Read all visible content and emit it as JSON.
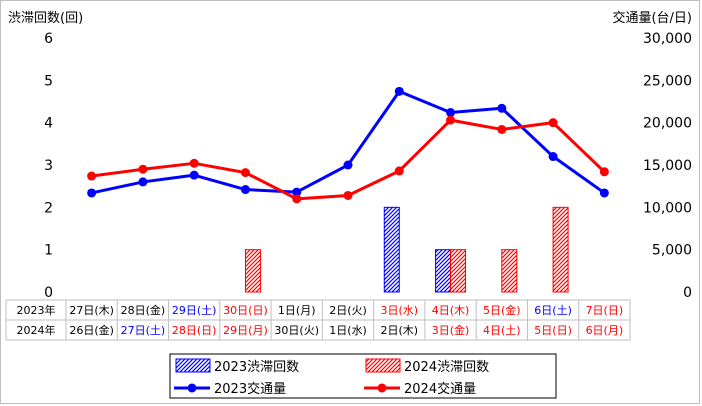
{
  "chart_data": {
    "type": "bar+line",
    "left_axis_title": "渋滞回数(回)",
    "right_axis_title": "交通量(台/日)",
    "left_ylim": [
      0,
      6
    ],
    "right_ylim": [
      0,
      30000
    ],
    "left_ticks": [
      "0",
      "1",
      "2",
      "3",
      "4",
      "5",
      "6"
    ],
    "right_ticks": [
      "0",
      "5,000",
      "10,000",
      "15,000",
      "20,000",
      "25,000",
      "30,000"
    ],
    "grid": false,
    "legend_position": "bottom",
    "rows": [
      {
        "year": "2023年",
        "dates": [
          {
            "text": "27日(木)",
            "color": "#000000"
          },
          {
            "text": "28日(金)",
            "color": "#000000"
          },
          {
            "text": "29日(土)",
            "color": "#0000ff"
          },
          {
            "text": "30日(日)",
            "color": "#ff0000"
          },
          {
            "text": "1日(月)",
            "color": "#000000"
          },
          {
            "text": "2日(火)",
            "color": "#000000"
          },
          {
            "text": "3日(水)",
            "color": "#ff0000"
          },
          {
            "text": "4日(木)",
            "color": "#ff0000"
          },
          {
            "text": "5日(金)",
            "color": "#ff0000"
          },
          {
            "text": "6日(土)",
            "color": "#0000ff"
          },
          {
            "text": "7日(日)",
            "color": "#ff0000"
          }
        ]
      },
      {
        "year": "2024年",
        "dates": [
          {
            "text": "26日(金)",
            "color": "#000000"
          },
          {
            "text": "27日(土)",
            "color": "#0000ff"
          },
          {
            "text": "28日(日)",
            "color": "#ff0000"
          },
          {
            "text": "29日(月)",
            "color": "#ff0000"
          },
          {
            "text": "30日(火)",
            "color": "#000000"
          },
          {
            "text": "1日(水)",
            "color": "#000000"
          },
          {
            "text": "2日(木)",
            "color": "#000000"
          },
          {
            "text": "3日(金)",
            "color": "#ff0000"
          },
          {
            "text": "4日(土)",
            "color": "#ff0000"
          },
          {
            "text": "5日(日)",
            "color": "#ff0000"
          },
          {
            "text": "6日(月)",
            "color": "#ff0000"
          }
        ]
      }
    ],
    "bar_series": [
      {
        "name": "2023渋滞回数",
        "color": "#0000ff",
        "values": [
          0,
          0,
          0,
          0,
          0,
          0,
          2,
          1,
          0,
          0,
          0
        ]
      },
      {
        "name": "2024渋滞回数",
        "color": "#ff0000",
        "values": [
          0,
          0,
          0,
          1,
          0,
          0,
          0,
          1,
          1,
          2,
          0
        ]
      }
    ],
    "line_series": [
      {
        "name": "2023交通量",
        "color": "#0000ff",
        "values": [
          11700,
          13000,
          13800,
          12100,
          11800,
          15000,
          23700,
          21200,
          21700,
          16000,
          11700
        ]
      },
      {
        "name": "2024交通量",
        "color": "#ff0000",
        "values": [
          13700,
          14500,
          15200,
          14100,
          11000,
          11400,
          14300,
          20300,
          19200,
          20000,
          14200
        ]
      }
    ]
  }
}
